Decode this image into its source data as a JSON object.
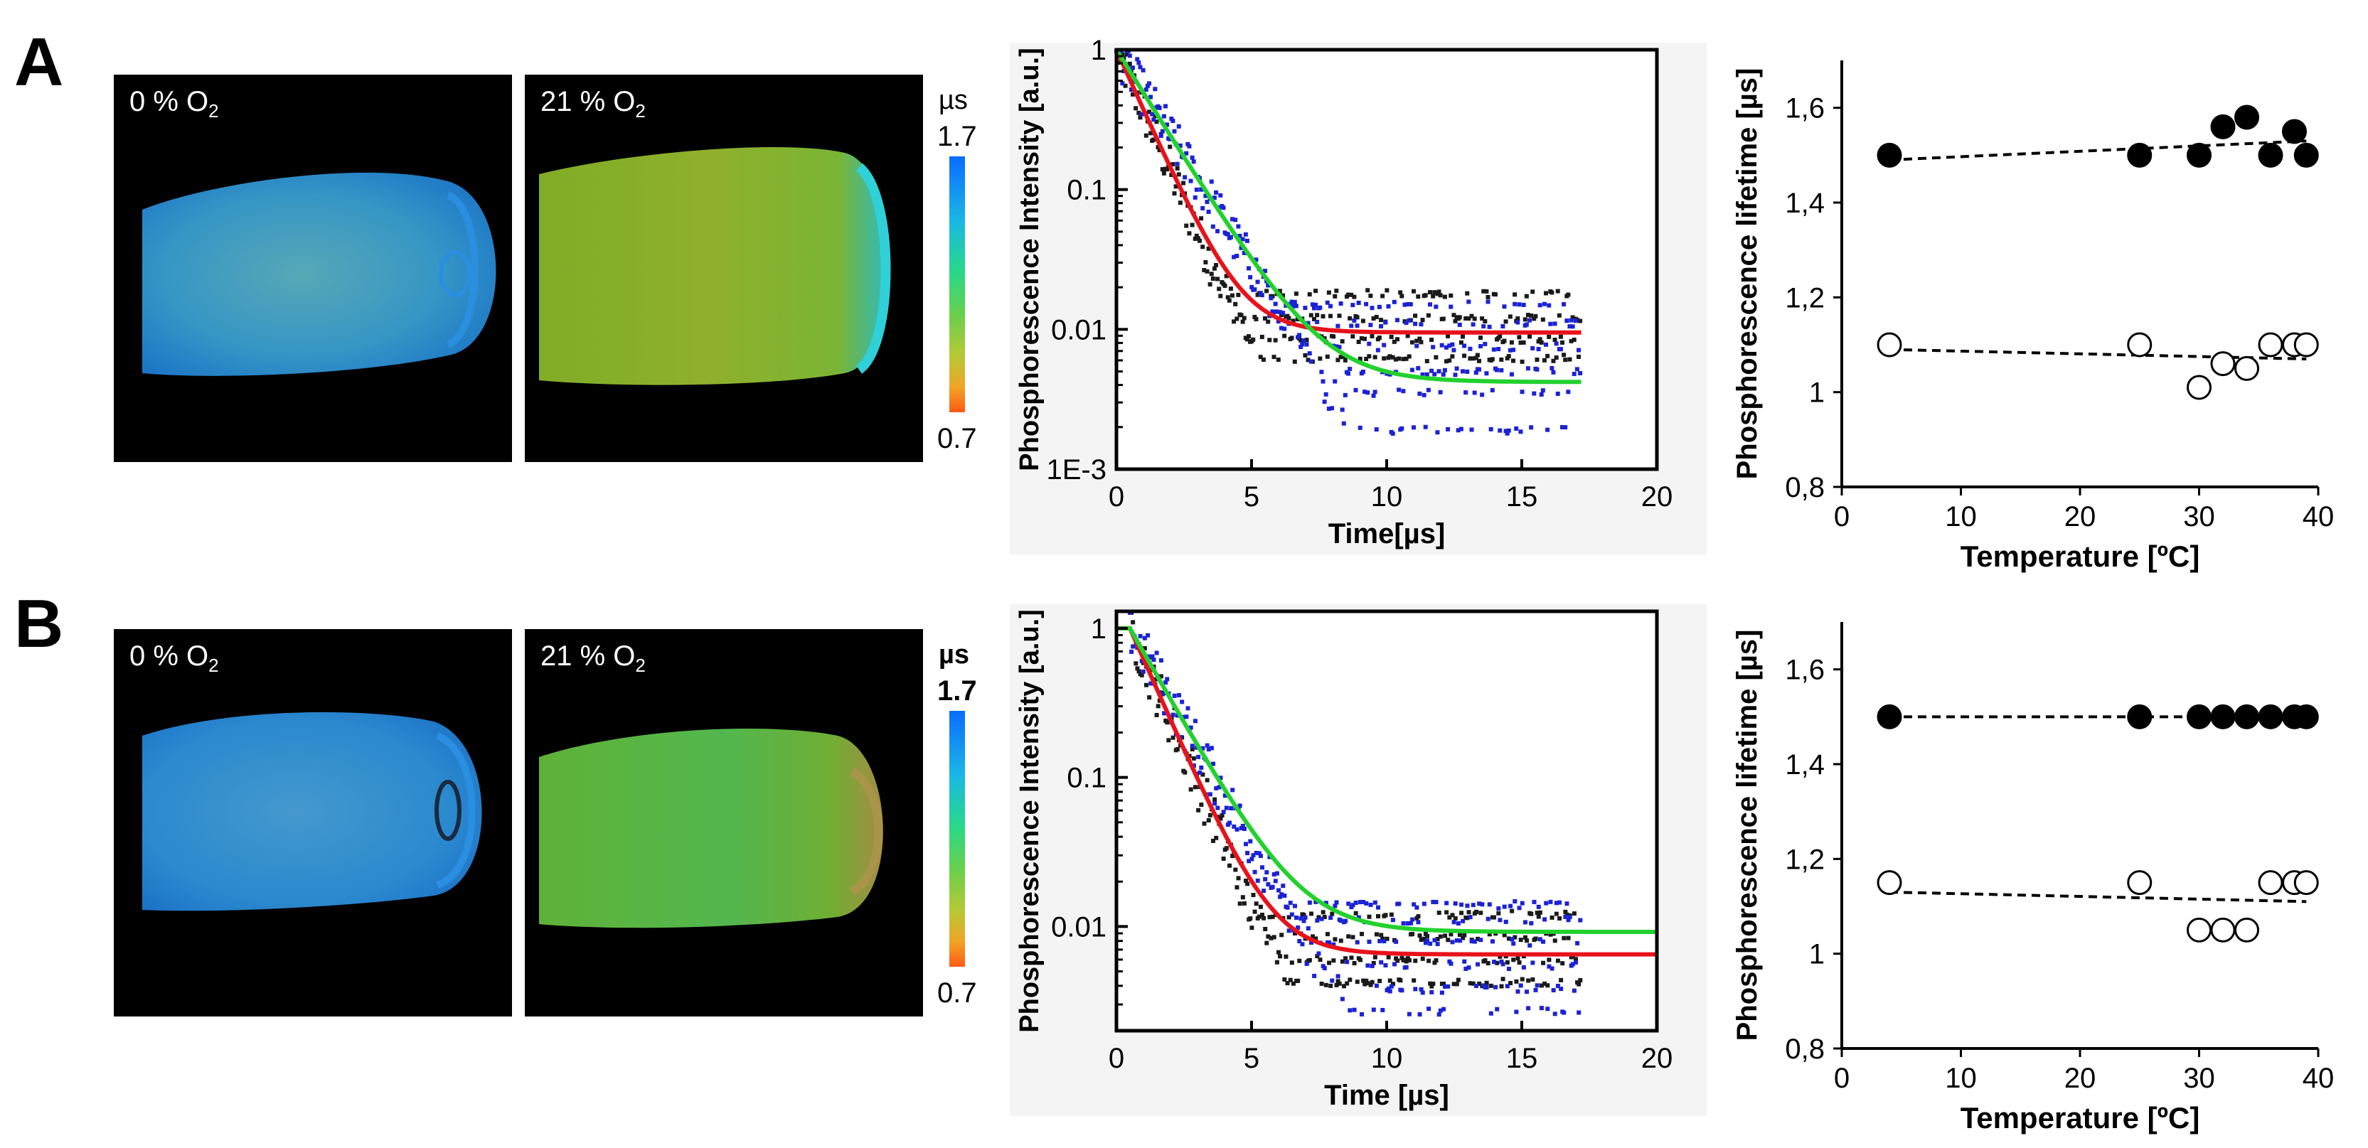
{
  "panels": [
    {
      "letter": "A",
      "image_left": {
        "label_prefix": "0 % O",
        "label_sub": "2"
      },
      "image_right": {
        "label_prefix": "21 % O",
        "label_sub": "2"
      },
      "colorbar": {
        "unit": "µs",
        "max": "1.7",
        "min": "0.7"
      },
      "decay_chart": {
        "type": "scatter",
        "ylabel": "Phosphorescence Intensity [a.u.]",
        "xlabel": "Time[µs]",
        "x_ticks": [
          "0",
          "5",
          "10",
          "15",
          "20"
        ],
        "y_ticks": [
          "1",
          "0.1",
          "0.01",
          "1E-3"
        ],
        "xlim": [
          0,
          20
        ],
        "ylim_log": [
          0.001,
          1
        ]
      },
      "temp_chart": {
        "type": "scatter",
        "ylabel": "Phosphorescence lifetime [µs]",
        "xlabel": "Temperature [ºC]",
        "x_ticks": [
          "0",
          "10",
          "20",
          "30",
          "40"
        ],
        "y_ticks": [
          "1,6",
          "1,4",
          "1,2",
          "1",
          "0,8"
        ]
      }
    },
    {
      "letter": "B",
      "image_left": {
        "label_prefix": "0 % O",
        "label_sub": "2"
      },
      "image_right": {
        "label_prefix": "21 % O",
        "label_sub": "2"
      },
      "colorbar": {
        "unit": "µs",
        "max": "1.7",
        "min": "0.7"
      },
      "decay_chart": {
        "type": "scatter",
        "ylabel": "Phosphorescence Intensity [a.u.]",
        "xlabel": "Time [µs]",
        "x_ticks": [
          "0",
          "5",
          "10",
          "15",
          "20"
        ],
        "y_ticks": [
          "1",
          "0.1",
          "0.01"
        ],
        "xlim": [
          0,
          20
        ],
        "ylim_log": [
          0.002,
          1.3
        ]
      },
      "temp_chart": {
        "type": "scatter",
        "ylabel": "Phosphorescence lifetime [µs]",
        "xlabel": "Temperature [ºC]",
        "x_ticks": [
          "0",
          "10",
          "20",
          "30",
          "40"
        ],
        "y_ticks": [
          "1,6",
          "1,4",
          "1,2",
          "1",
          "0,8"
        ]
      }
    }
  ],
  "chart_data": [
    {
      "panel": "A",
      "type": "line",
      "title": "",
      "xlabel": "Time[µs]",
      "ylabel": "Phosphorescence Intensity [a.u.]",
      "xlim": [
        0,
        20
      ],
      "ylim": [
        0.001,
        1
      ],
      "yscale": "log",
      "series": [
        {
          "name": "red fit",
          "color": "#e8121b",
          "tau": 1.0,
          "floor": 0.0095,
          "x_end": 17.2
        },
        {
          "name": "green fit",
          "color": "#22d12e",
          "tau": 1.4,
          "floor": 0.0042,
          "x_end": 17.2
        }
      ],
      "scatter_series": [
        {
          "name": "black points",
          "color": "#1a1a1a",
          "tau": 1.0,
          "floor_levels": [
            0.018,
            0.012,
            0.0085,
            0.0062
          ]
        },
        {
          "name": "blue points",
          "color": "#1b22d6",
          "tau": 1.4,
          "floor_levels": [
            0.015,
            0.011,
            0.0075,
            0.005,
            0.0035,
            0.0019
          ]
        }
      ]
    },
    {
      "panel": "A",
      "type": "scatter",
      "title": "",
      "xlabel": "Temperature [ºC]",
      "ylabel": "Phosphorescence lifetime [µs]",
      "xlim": [
        0,
        40
      ],
      "ylim": [
        0.8,
        1.7
      ],
      "series": [
        {
          "name": "filled",
          "marker": "filled",
          "x": [
            4,
            25,
            30,
            32,
            34,
            36,
            38,
            39
          ],
          "y": [
            1.5,
            1.5,
            1.5,
            1.56,
            1.58,
            1.5,
            1.55,
            1.5
          ],
          "trend": [
            [
              4,
              1.49
            ],
            [
              39,
              1.53
            ]
          ]
        },
        {
          "name": "open",
          "marker": "open",
          "x": [
            4,
            25,
            30,
            32,
            34,
            36,
            38,
            39
          ],
          "y": [
            1.1,
            1.1,
            1.01,
            1.06,
            1.05,
            1.1,
            1.1,
            1.1
          ],
          "trend": [
            [
              4,
              1.09
            ],
            [
              39,
              1.07
            ]
          ]
        }
      ]
    },
    {
      "panel": "B",
      "type": "line",
      "title": "",
      "xlabel": "Time [µs]",
      "ylabel": "Phosphorescence Intensity [a.u.]",
      "xlim": [
        0,
        20
      ],
      "ylim": [
        0.002,
        1.3
      ],
      "yscale": "log",
      "series": [
        {
          "name": "red fit",
          "color": "#e8121b",
          "tau": 1.05,
          "floor": 0.0065,
          "x_end": 20,
          "delay": 0.5
        },
        {
          "name": "green fit",
          "color": "#22d12e",
          "tau": 1.35,
          "floor": 0.0092,
          "x_end": 20,
          "delay": 0.5
        }
      ],
      "scatter_series": [
        {
          "name": "black points",
          "color": "#1a1a1a",
          "tau": 1.05,
          "floor_levels": [
            0.012,
            0.0085,
            0.006,
            0.0042
          ]
        },
        {
          "name": "blue points",
          "color": "#1b22d6",
          "tau": 1.35,
          "floor_levels": [
            0.014,
            0.011,
            0.0078,
            0.0055,
            0.0038,
            0.0027
          ]
        }
      ]
    },
    {
      "panel": "B",
      "type": "scatter",
      "title": "",
      "xlabel": "Temperature [ºC]",
      "ylabel": "Phosphorescence lifetime [µs]",
      "xlim": [
        0,
        40
      ],
      "ylim": [
        0.8,
        1.7
      ],
      "series": [
        {
          "name": "filled",
          "marker": "filled",
          "x": [
            4,
            25,
            30,
            32,
            34,
            36,
            38,
            39
          ],
          "y": [
            1.5,
            1.5,
            1.5,
            1.5,
            1.5,
            1.5,
            1.5,
            1.5
          ],
          "trend": [
            [
              4,
              1.5
            ],
            [
              39,
              1.5
            ]
          ]
        },
        {
          "name": "open",
          "marker": "open",
          "x": [
            4,
            25,
            30,
            32,
            34,
            36,
            38,
            39
          ],
          "y": [
            1.15,
            1.15,
            1.05,
            1.05,
            1.05,
            1.15,
            1.15,
            1.15
          ],
          "trend": [
            [
              4,
              1.13
            ],
            [
              39,
              1.11
            ]
          ]
        }
      ]
    }
  ]
}
